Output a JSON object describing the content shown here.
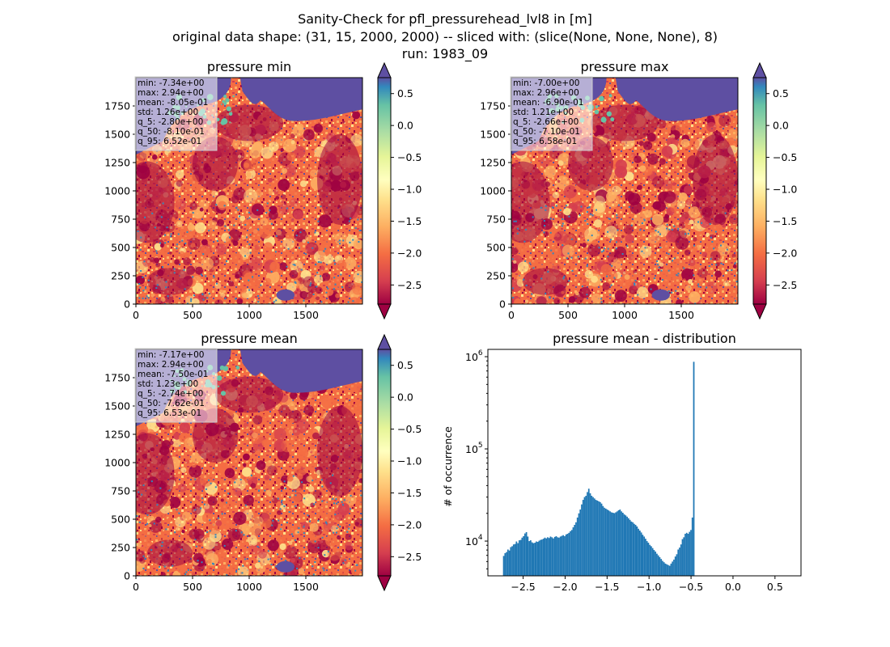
{
  "figure": {
    "title_lines": [
      "Sanity-Check for pfl_pressurehead_lvl8 in [m]",
      "original data shape: (31, 15, 2000, 2000) -- sliced with: (slice(None, None, None), 8)",
      "run: 1983_09"
    ]
  },
  "colors": {
    "land_dark": "#9e0142",
    "land_mid": "#f46d43",
    "land_light": "#fee08b",
    "water": "#5e4fa2",
    "high": "#66c2a5",
    "bar": "#1f77b4"
  },
  "chart_data": [
    {
      "type": "heatmap",
      "title": "pressure min",
      "xticks": [
        "0",
        "500",
        "1000",
        "1500"
      ],
      "yticks": [
        "0",
        "250",
        "500",
        "750",
        "1000",
        "1250",
        "1500",
        "1750"
      ],
      "xlim": [
        0,
        2000
      ],
      "ylim": [
        0,
        2000
      ],
      "colorbar": {
        "ticks": [
          "0.5",
          "0.0",
          "−0.5",
          "−1.0",
          "−1.5",
          "−2.0",
          "−2.5"
        ],
        "range": [
          -2.8,
          0.75
        ],
        "colormap": "Spectral"
      },
      "stats": [
        "min: -7.34e+00",
        "max: 2.94e+00",
        "mean: -8.05e-01",
        "std: 1.26e+00",
        "q_5: -2.80e+00",
        "q_50: -8.10e-01",
        "q_95: 6.52e-01"
      ]
    },
    {
      "type": "heatmap",
      "title": "pressure max",
      "xticks": [
        "0",
        "500",
        "1000",
        "1500"
      ],
      "yticks": [
        "0",
        "250",
        "500",
        "750",
        "1000",
        "1250",
        "1500",
        "1750"
      ],
      "xlim": [
        0,
        2000
      ],
      "ylim": [
        0,
        2000
      ],
      "colorbar": {
        "ticks": [
          "0.5",
          "0.0",
          "−0.5",
          "−1.0",
          "−1.5",
          "−2.0",
          "−2.5"
        ],
        "range": [
          -2.8,
          0.75
        ],
        "colormap": "Spectral"
      },
      "stats": [
        "min: -7.00e+00",
        "max: 2.96e+00",
        "mean: -6.90e-01",
        "std: 1.21e+00",
        "q_5: -2.66e+00",
        "q_50: -7.10e-01",
        "q_95: 6.58e-01"
      ]
    },
    {
      "type": "heatmap",
      "title": "pressure mean",
      "xticks": [
        "0",
        "500",
        "1000",
        "1500"
      ],
      "yticks": [
        "0",
        "250",
        "500",
        "750",
        "1000",
        "1250",
        "1500",
        "1750"
      ],
      "xlim": [
        0,
        2000
      ],
      "ylim": [
        0,
        2000
      ],
      "colorbar": {
        "ticks": [
          "0.5",
          "0.0",
          "−0.5",
          "−1.0",
          "−1.5",
          "−2.0",
          "−2.5"
        ],
        "range": [
          -2.8,
          0.75
        ],
        "colormap": "Spectral"
      },
      "stats": [
        "min: -7.17e+00",
        "max: 2.94e+00",
        "mean: -7.50e-01",
        "std: 1.23e+00",
        "q_5: -2.74e+00",
        "q_50: -7.62e-01",
        "q_95: 6.53e-01"
      ]
    },
    {
      "type": "bar",
      "title": "pressure mean - distribution",
      "ylabel": "# of occurrence",
      "xlabel": "",
      "xlim": [
        -2.92,
        0.81
      ],
      "ylim": [
        4200,
        1200000
      ],
      "yscale": "log",
      "xticks": [
        {
          "value": -2.5,
          "label": "−2.5"
        },
        {
          "value": -2.0,
          "label": "−2.0"
        },
        {
          "value": -1.5,
          "label": "−1.5"
        },
        {
          "value": -1.0,
          "label": "−1.0"
        },
        {
          "value": -0.5,
          "label": "−0.5"
        },
        {
          "value": 0.0,
          "label": "0.0"
        },
        {
          "value": 0.5,
          "label": "0.5"
        }
      ],
      "yticks": [
        {
          "value": 10000,
          "base": "10",
          "exp": "4"
        },
        {
          "value": 100000,
          "base": "10",
          "exp": "5"
        },
        {
          "value": 1000000,
          "base": "10",
          "exp": "6"
        }
      ],
      "bins": {
        "edges_start": -2.74,
        "bin_width": 0.0169,
        "values": [
          6900,
          7400,
          7600,
          8100,
          7900,
          8600,
          8800,
          9200,
          9300,
          9900,
          9500,
          10200,
          10300,
          10900,
          11300,
          12100,
          12500,
          11200,
          10000,
          10200,
          9700,
          9500,
          9600,
          9900,
          9800,
          10100,
          10300,
          10400,
          10600,
          10900,
          10700,
          11000,
          10800,
          11200,
          11000,
          10700,
          11100,
          11300,
          11000,
          10900,
          11200,
          11400,
          11600,
          11300,
          11800,
          12000,
          12300,
          12800,
          13200,
          14100,
          15000,
          16000,
          18000,
          20000,
          22000,
          25000,
          28000,
          30000,
          31000,
          34000,
          37000,
          33000,
          31000,
          30000,
          29000,
          28000,
          27500,
          27000,
          26500,
          25500,
          24000,
          23000,
          22500,
          22000,
          21500,
          21000,
          20500,
          20300,
          20100,
          20500,
          21000,
          21600,
          22000,
          21000,
          20300,
          19500,
          19000,
          18400,
          17700,
          17000,
          16300,
          16000,
          15400,
          15000,
          14400,
          13600,
          13000,
          12400,
          11700,
          11200,
          10600,
          10000,
          9600,
          9100,
          8800,
          8400,
          8000,
          7700,
          7300,
          7000,
          6700,
          6400,
          6100,
          5900,
          5700,
          5600,
          5500,
          5400,
          5700,
          6000,
          6300,
          6800,
          7200,
          8100,
          8500,
          9200,
          10500,
          11000,
          12000,
          12300,
          12000,
          12600,
          13200,
          18000,
          880000
        ]
      }
    }
  ]
}
